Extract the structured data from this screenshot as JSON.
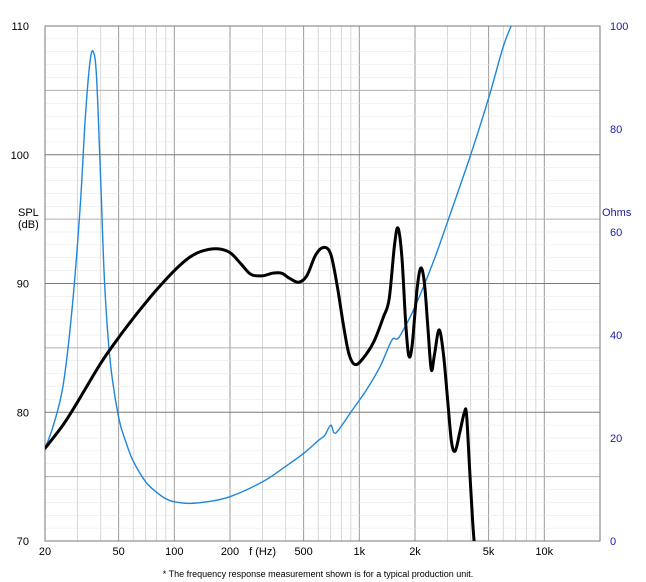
{
  "chart_data": {
    "type": "line",
    "x_scale": "log",
    "grid": true,
    "x_tick_labels": [
      {
        "label": "20",
        "value": 20
      },
      {
        "label": "50",
        "value": 50
      },
      {
        "label": "100",
        "value": 100
      },
      {
        "label": "200",
        "value": 200
      },
      {
        "label": "500",
        "value": 500
      },
      {
        "label": "1k",
        "value": 1000
      },
      {
        "label": "2k",
        "value": 2000
      },
      {
        "label": "5k",
        "value": 5000
      },
      {
        "label": "10k",
        "value": 10000
      }
    ],
    "xlabel": "f (Hz)",
    "xlabel_value": 300,
    "xlim": [
      20,
      20000
    ],
    "y_left": {
      "label": [
        "SPL",
        "(dB)"
      ],
      "ylim": [
        70,
        110
      ],
      "ticks": [
        70,
        80,
        90,
        100,
        110
      ]
    },
    "y_right": {
      "label": "Ohms",
      "ylim": [
        0,
        100
      ],
      "ticks": [
        0,
        20,
        40,
        60,
        80,
        100
      ]
    },
    "series": [
      {
        "axis": "left",
        "color": "#000000",
        "points": [
          [
            20,
            77.2
          ],
          [
            25,
            79.0
          ],
          [
            30,
            80.8
          ],
          [
            40,
            83.8
          ],
          [
            50,
            85.8
          ],
          [
            60,
            87.3
          ],
          [
            70,
            88.5
          ],
          [
            80,
            89.5
          ],
          [
            100,
            91.0
          ],
          [
            120,
            92.0
          ],
          [
            140,
            92.5
          ],
          [
            170,
            92.7
          ],
          [
            200,
            92.4
          ],
          [
            230,
            91.5
          ],
          [
            260,
            90.7
          ],
          [
            300,
            90.6
          ],
          [
            340,
            90.8
          ],
          [
            380,
            90.8
          ],
          [
            420,
            90.4
          ],
          [
            470,
            90.1
          ],
          [
            520,
            90.6
          ],
          [
            580,
            92.2
          ],
          [
            640,
            92.8
          ],
          [
            700,
            92.3
          ],
          [
            760,
            89.8
          ],
          [
            820,
            86.8
          ],
          [
            880,
            84.5
          ],
          [
            950,
            83.7
          ],
          [
            1050,
            84.2
          ],
          [
            1200,
            85.5
          ],
          [
            1350,
            87.4
          ],
          [
            1450,
            88.8
          ],
          [
            1550,
            93.0
          ],
          [
            1620,
            94.3
          ],
          [
            1700,
            92.0
          ],
          [
            1780,
            87.0
          ],
          [
            1850,
            84.4
          ],
          [
            1930,
            85.2
          ],
          [
            2050,
            89.5
          ],
          [
            2150,
            91.2
          ],
          [
            2250,
            90.0
          ],
          [
            2350,
            86.5
          ],
          [
            2450,
            83.3
          ],
          [
            2550,
            84.5
          ],
          [
            2700,
            86.4
          ],
          [
            2850,
            84.5
          ],
          [
            3000,
            81.0
          ],
          [
            3150,
            77.7
          ],
          [
            3300,
            77.0
          ],
          [
            3500,
            78.5
          ],
          [
            3700,
            80.0
          ],
          [
            3800,
            79.8
          ],
          [
            3950,
            75.5
          ],
          [
            4100,
            71.5
          ],
          [
            4200,
            69.5
          ]
        ]
      },
      {
        "axis": "right",
        "color": "#1f86d9",
        "points": [
          [
            20,
            18.0
          ],
          [
            22,
            22.0
          ],
          [
            25,
            30.0
          ],
          [
            28,
            45.0
          ],
          [
            31,
            65.0
          ],
          [
            33,
            82.0
          ],
          [
            35,
            93.0
          ],
          [
            36.5,
            95.0
          ],
          [
            38,
            90.0
          ],
          [
            40,
            70.0
          ],
          [
            42,
            50.0
          ],
          [
            45,
            35.0
          ],
          [
            50,
            24.0
          ],
          [
            55,
            19.0
          ],
          [
            60,
            15.5
          ],
          [
            70,
            11.5
          ],
          [
            80,
            9.5
          ],
          [
            90,
            8.2
          ],
          [
            100,
            7.6
          ],
          [
            120,
            7.3
          ],
          [
            150,
            7.6
          ],
          [
            200,
            8.6
          ],
          [
            300,
            11.5
          ],
          [
            400,
            14.5
          ],
          [
            500,
            17.0
          ],
          [
            600,
            19.5
          ],
          [
            650,
            20.5
          ],
          [
            700,
            22.5
          ],
          [
            730,
            21.0
          ],
          [
            770,
            21.5
          ],
          [
            900,
            25.0
          ],
          [
            1100,
            29.5
          ],
          [
            1300,
            34.0
          ],
          [
            1500,
            39.0
          ],
          [
            1600,
            39.2
          ],
          [
            1700,
            40.5
          ],
          [
            2000,
            45.5
          ],
          [
            2500,
            54.0
          ],
          [
            3000,
            62.0
          ],
          [
            4000,
            75.0
          ],
          [
            5000,
            86.0
          ],
          [
            6000,
            96.0
          ],
          [
            6800,
            101.0
          ]
        ]
      }
    ]
  },
  "footnote": "* The frequency response measurement shown is for a typical production unit."
}
